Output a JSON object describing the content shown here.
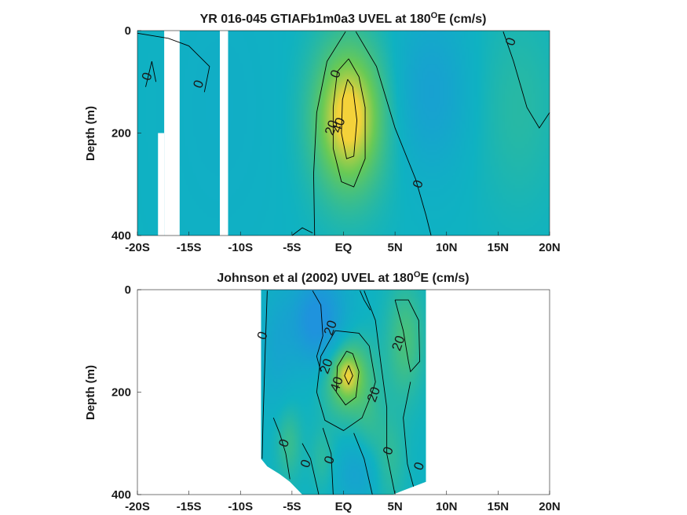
{
  "chart_data": [
    {
      "type": "heatmap",
      "title": "YR 016-045 GTIAFb1m0a3 UVEL at 180",
      "title_sup": "O",
      "title_end": "E (cm/s)",
      "xlabel": "",
      "ylabel": "Depth (m)",
      "x_ticks": [
        "-20S",
        "-15S",
        "-10S",
        "-5S",
        "EQ",
        "5N",
        "10N",
        "15N",
        "20N"
      ],
      "y_ticks": [
        "0",
        "200",
        "400"
      ],
      "xlim": [
        -20,
        20
      ],
      "ylim": [
        0,
        400
      ],
      "colors": {
        "background": "#0fb2c2",
        "high": "#f4d23a",
        "mid": "#69ca55",
        "low": "#1f93dd"
      },
      "blobs": [
        {
          "x": 0.5,
          "y": 170,
          "rx": 3.5,
          "ry": 150,
          "v": 35
        },
        {
          "x": 0.5,
          "y": 170,
          "rx": 1.8,
          "ry": 70,
          "v": 15
        },
        {
          "x": 8.5,
          "y": 120,
          "rx": 3.5,
          "ry": 150,
          "v": -12
        },
        {
          "x": 17,
          "y": 150,
          "rx": 4,
          "ry": 200,
          "v": 6
        },
        {
          "x": -12,
          "y": 150,
          "rx": 6,
          "ry": 300,
          "v": -3
        }
      ],
      "missing": [
        {
          "x0": -17.4,
          "x1": -15.9,
          "y0": 0,
          "y1": 400
        },
        {
          "x0": -18.0,
          "x1": -17.4,
          "y0": 200,
          "y1": 400
        },
        {
          "x0": -12.0,
          "x1": -11.2,
          "y0": 0,
          "y1": 400
        }
      ],
      "contour_labels": [
        {
          "text": "0",
          "x": -19.0,
          "y": 90
        },
        {
          "text": "0",
          "x": -14.0,
          "y": 105
        },
        {
          "text": "0",
          "x": -0.7,
          "y": 85
        },
        {
          "text": "20",
          "x": -1.1,
          "y": 190
        },
        {
          "text": "40",
          "x": -0.4,
          "y": 185
        },
        {
          "text": "0",
          "x": 7.3,
          "y": 300
        },
        {
          "text": "0",
          "x": 16.3,
          "y": 22
        }
      ],
      "contours": [
        [
          [
            0.2,
            2
          ],
          [
            -1.6,
            60
          ],
          [
            -2.6,
            160
          ],
          [
            -2.9,
            280
          ],
          [
            -2.8,
            400
          ]
        ],
        [
          [
            0.5,
            55
          ],
          [
            -0.6,
            80
          ],
          [
            -1.0,
            150
          ],
          [
            -1.0,
            230
          ],
          [
            -0.2,
            295
          ],
          [
            1.0,
            305
          ],
          [
            2.1,
            250
          ],
          [
            2.1,
            150
          ],
          [
            1.5,
            90
          ],
          [
            0.5,
            55
          ]
        ],
        [
          [
            0.4,
            95
          ],
          [
            -0.1,
            135
          ],
          [
            -0.2,
            200
          ],
          [
            0.3,
            250
          ],
          [
            1.0,
            245
          ],
          [
            1.3,
            175
          ],
          [
            0.9,
            110
          ],
          [
            0.4,
            95
          ]
        ],
        [
          [
            1.2,
            2
          ],
          [
            3.2,
            70
          ],
          [
            5.0,
            190
          ],
          [
            7.0,
            290
          ],
          [
            8.0,
            360
          ],
          [
            8.5,
            400
          ]
        ],
        [
          [
            15.5,
            2
          ],
          [
            16.5,
            60
          ],
          [
            17.8,
            150
          ],
          [
            19.0,
            190
          ],
          [
            20.0,
            160
          ]
        ],
        [
          [
            -20,
            5
          ],
          [
            -17,
            15
          ],
          [
            -15,
            30
          ],
          [
            -13,
            70
          ],
          [
            -13.5,
            120
          ]
        ],
        [
          [
            -19.2,
            110
          ],
          [
            -18.6,
            60
          ],
          [
            -18.2,
            100
          ]
        ],
        [
          [
            -5,
            400
          ],
          [
            -4,
            385
          ],
          [
            -3,
            395
          ]
        ]
      ]
    },
    {
      "type": "heatmap",
      "title": "Johnson et al (2002) UVEL at 180",
      "title_sup": "O",
      "title_end": "E (cm/s)",
      "xlabel": "",
      "ylabel": "Depth (m)",
      "x_ticks": [
        "-20S",
        "-15S",
        "-10S",
        "-5S",
        "EQ",
        "5N",
        "10N",
        "15N",
        "20N"
      ],
      "y_ticks": [
        "0",
        "200",
        "400"
      ],
      "xlim": [
        -20,
        20
      ],
      "ylim": [
        0,
        400
      ],
      "colors": {
        "background": "#0fb2c2",
        "high": "#f4d23a",
        "mid": "#69ca55",
        "low": "#1f93dd"
      },
      "data_extent": {
        "x0": -8.0,
        "x1": 8.0
      },
      "bottom_edge": [
        [
          -8.0,
          330
        ],
        [
          -7.4,
          345
        ],
        [
          -6.2,
          360
        ],
        [
          -5.2,
          375
        ],
        [
          -4.0,
          400
        ],
        [
          4.8,
          400
        ],
        [
          5.8,
          392
        ],
        [
          8.0,
          375
        ]
      ],
      "blobs": [
        {
          "x": 0.4,
          "y": 170,
          "rx": 2.3,
          "ry": 75,
          "v": 25
        },
        {
          "x": 0.4,
          "y": 168,
          "rx": 1.0,
          "ry": 32,
          "v": 18
        },
        {
          "x": -2.5,
          "y": 60,
          "rx": 2.6,
          "ry": 90,
          "v": -25
        },
        {
          "x": -6.5,
          "y": 110,
          "rx": 1.6,
          "ry": 110,
          "v": -8
        },
        {
          "x": 6.0,
          "y": 100,
          "rx": 1.8,
          "ry": 110,
          "v": 14
        },
        {
          "x": 4.5,
          "y": 330,
          "rx": 1.5,
          "ry": 90,
          "v": 8
        },
        {
          "x": 2.5,
          "y": 260,
          "rx": 1.4,
          "ry": 70,
          "v": 6
        },
        {
          "x": -5.3,
          "y": 300,
          "rx": 1.2,
          "ry": 70,
          "v": 10
        },
        {
          "x": 1.2,
          "y": 360,
          "rx": 2.0,
          "ry": 60,
          "v": -10
        },
        {
          "x": -2.0,
          "y": 330,
          "rx": 1.2,
          "ry": 60,
          "v": 7
        }
      ],
      "contour_labels": [
        {
          "text": "0",
          "x": -7.8,
          "y": 90
        },
        {
          "text": "20",
          "x": -1.2,
          "y": 75
        },
        {
          "text": "20",
          "x": -1.6,
          "y": 150
        },
        {
          "text": "40",
          "x": -0.6,
          "y": 185
        },
        {
          "text": "20",
          "x": 3.0,
          "y": 205
        },
        {
          "text": "20",
          "x": 5.4,
          "y": 105
        },
        {
          "text": "0",
          "x": -5.7,
          "y": 300
        },
        {
          "text": "0",
          "x": -3.6,
          "y": 340
        },
        {
          "text": "0",
          "x": -1.3,
          "y": 333
        },
        {
          "text": "0",
          "x": 4.4,
          "y": 315
        },
        {
          "text": "0",
          "x": 7.4,
          "y": 345
        }
      ],
      "contours": [
        [
          [
            -7.4,
            2
          ],
          [
            -7.6,
            120
          ],
          [
            -7.8,
            250
          ],
          [
            -7.9,
            330
          ]
        ],
        [
          [
            -3.0,
            2
          ],
          [
            -2.2,
            30
          ],
          [
            -2.0,
            90
          ],
          [
            -2.6,
            130
          ],
          [
            -2.2,
            160
          ]
        ],
        [
          [
            -0.8,
            80
          ],
          [
            -2.2,
            130
          ],
          [
            -2.6,
            200
          ],
          [
            -1.8,
            255
          ],
          [
            0.0,
            275
          ],
          [
            1.8,
            250
          ],
          [
            2.8,
            200
          ],
          [
            3.1,
            180
          ],
          [
            2.5,
            110
          ],
          [
            1.5,
            85
          ],
          [
            -0.8,
            80
          ]
        ],
        [
          [
            0.3,
            120
          ],
          [
            -0.6,
            150
          ],
          [
            -0.7,
            200
          ],
          [
            0.2,
            225
          ],
          [
            1.2,
            210
          ],
          [
            1.5,
            160
          ],
          [
            0.9,
            125
          ],
          [
            0.3,
            120
          ]
        ],
        [
          [
            0.5,
            148
          ],
          [
            0.1,
            168
          ],
          [
            0.5,
            185
          ],
          [
            0.9,
            168
          ],
          [
            0.5,
            148
          ]
        ],
        [
          [
            5.0,
            20
          ],
          [
            5.8,
            80
          ],
          [
            6.3,
            140
          ],
          [
            6.5,
            160
          ],
          [
            7.4,
            140
          ],
          [
            7.3,
            60
          ],
          [
            6.3,
            20
          ],
          [
            5.0,
            20
          ]
        ],
        [
          [
            2.0,
            2
          ],
          [
            3.1,
            60
          ],
          [
            3.6,
            140
          ],
          [
            4.2,
            230
          ],
          [
            4.2,
            320
          ],
          [
            5.0,
            400
          ]
        ],
        [
          [
            6.5,
            180
          ],
          [
            5.8,
            250
          ],
          [
            6.2,
            340
          ],
          [
            7.0,
            400
          ]
        ],
        [
          [
            -6.8,
            250
          ],
          [
            -6.2,
            280
          ],
          [
            -5.6,
            320
          ],
          [
            -5.2,
            370
          ]
        ],
        [
          [
            -4.0,
            300
          ],
          [
            -3.2,
            330
          ],
          [
            -2.4,
            400
          ]
        ],
        [
          [
            -2.0,
            270
          ],
          [
            -1.2,
            320
          ],
          [
            -1.0,
            400
          ]
        ],
        [
          [
            1.0,
            280
          ],
          [
            2.0,
            330
          ],
          [
            2.8,
            400
          ]
        ],
        [
          [
            1.6,
            2
          ],
          [
            2.0,
            20
          ],
          [
            2.6,
            40
          ]
        ]
      ]
    }
  ]
}
